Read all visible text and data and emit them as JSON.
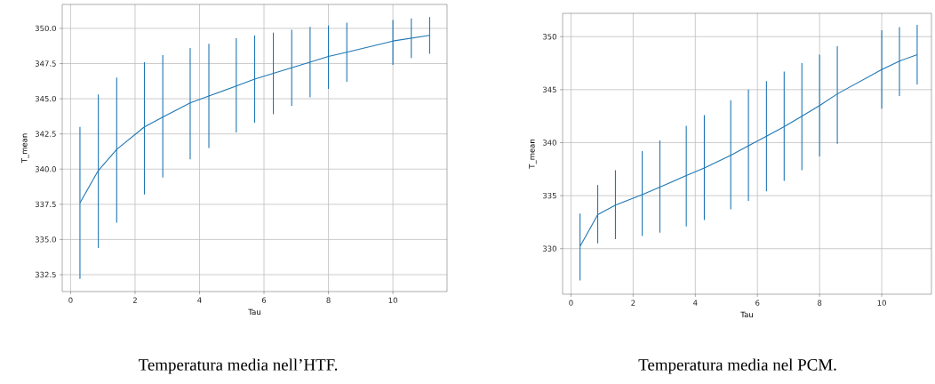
{
  "chart_data": [
    {
      "type": "line",
      "xlabel": "Tau",
      "ylabel": "T_mean",
      "annotations": [
        "Temperatura media nell’HTF."
      ],
      "x": [
        0.29,
        0.86,
        1.43,
        2.29,
        2.86,
        3.71,
        4.29,
        5.14,
        5.71,
        6.29,
        6.86,
        7.43,
        8.0,
        8.57,
        10.0,
        10.57,
        11.14
      ],
      "series": [
        {
          "color": "#1f77b4",
          "values": [
            337.6,
            339.9,
            341.4,
            343.0,
            343.7,
            344.7,
            345.2,
            345.9,
            346.4,
            346.8,
            347.2,
            347.6,
            348.0,
            348.3,
            349.1,
            349.3,
            349.5
          ],
          "errors": [
            [
              332.2,
              343.0
            ],
            [
              334.4,
              345.3
            ],
            [
              336.2,
              346.5
            ],
            [
              338.2,
              347.6
            ],
            [
              339.4,
              348.1
            ],
            [
              340.7,
              348.6
            ],
            [
              341.5,
              348.9
            ],
            [
              342.6,
              349.3
            ],
            [
              343.3,
              349.5
            ],
            [
              343.9,
              349.7
            ],
            [
              344.5,
              349.9
            ],
            [
              345.1,
              350.1
            ],
            [
              345.7,
              350.2
            ],
            [
              346.2,
              350.4
            ],
            [
              347.4,
              350.6
            ],
            [
              347.9,
              350.7
            ],
            [
              348.2,
              350.8
            ]
          ]
        }
      ],
      "xlim": [
        -0.26,
        11.68
      ],
      "ylim": [
        331.3,
        351.7
      ],
      "xticks": [
        0,
        2,
        4,
        6,
        8,
        10
      ],
      "yticks": [
        {
          "value": 332.5,
          "label": "332.5"
        },
        {
          "value": 335,
          "label": "335.0"
        },
        {
          "value": 337.5,
          "label": "337.5"
        },
        {
          "value": 340,
          "label": "340.0"
        },
        {
          "value": 342.5,
          "label": "342.5"
        },
        {
          "value": 345,
          "label": "345.0"
        },
        {
          "value": 347.5,
          "label": "347.5"
        },
        {
          "value": 350,
          "label": "350.0"
        }
      ],
      "grid": true,
      "marker": "none",
      "line_style": "solid"
    },
    {
      "type": "line",
      "xlabel": "Tau",
      "ylabel": "T_mean",
      "annotations": [
        "Temperatura media nel PCM."
      ],
      "x": [
        0.29,
        0.86,
        1.43,
        2.29,
        2.86,
        3.71,
        4.29,
        5.14,
        5.71,
        6.29,
        6.86,
        7.43,
        8.0,
        8.57,
        10.0,
        10.57,
        11.14
      ],
      "series": [
        {
          "color": "#1f77b4",
          "values": [
            330.2,
            333.2,
            334.1,
            335.1,
            335.8,
            336.9,
            337.6,
            338.8,
            339.7,
            340.6,
            341.5,
            342.5,
            343.5,
            344.6,
            346.9,
            347.7,
            348.3
          ],
          "errors": [
            [
              327.0,
              333.3
            ],
            [
              330.5,
              336.0
            ],
            [
              330.9,
              337.4
            ],
            [
              331.2,
              339.2
            ],
            [
              331.5,
              340.2
            ],
            [
              332.1,
              341.6
            ],
            [
              332.7,
              342.6
            ],
            [
              333.7,
              344.0
            ],
            [
              334.5,
              345.0
            ],
            [
              335.4,
              345.8
            ],
            [
              336.4,
              346.7
            ],
            [
              337.4,
              347.5
            ],
            [
              338.7,
              348.3
            ],
            [
              339.9,
              349.1
            ],
            [
              343.2,
              350.6
            ],
            [
              344.4,
              350.9
            ],
            [
              345.5,
              351.1
            ]
          ]
        }
      ],
      "xlim": [
        -0.27,
        11.6
      ],
      "ylim": [
        325.7,
        352.2
      ],
      "xticks": [
        0,
        2,
        4,
        6,
        8,
        10
      ],
      "yticks": [
        330,
        335,
        340,
        345,
        350
      ],
      "grid": true,
      "marker": "none",
      "line_style": "solid"
    }
  ]
}
